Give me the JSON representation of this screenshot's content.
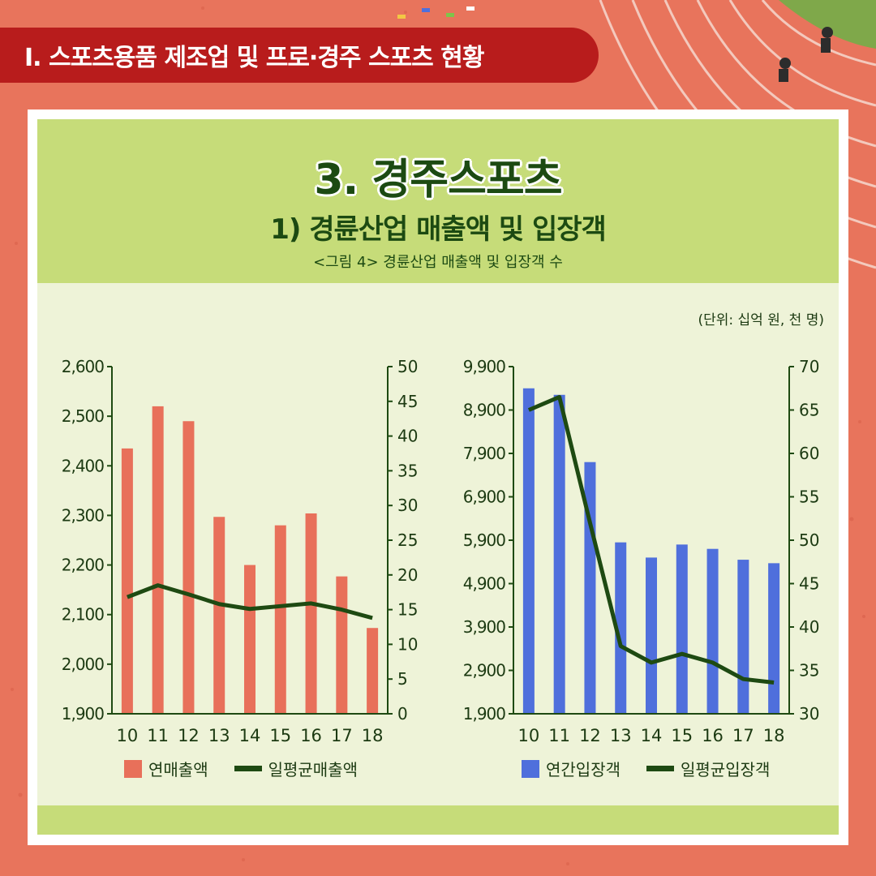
{
  "section_banner": "Ⅰ. 스포츠용품 제조업 및 프로·경주 스포츠 현황",
  "header": {
    "title": "3. 경주스포츠",
    "subtitle": "1) 경륜산업 매출액 및 입장객",
    "caption": "<그림 4> 경륜산업 매출액 및 입장객 수"
  },
  "unit_note": "(단위: 십억 원, 천 명)",
  "colors": {
    "bar_sales": "#e8705a",
    "bar_visitors": "#4f6fdc",
    "line": "#1e4a12",
    "accent_green": "#c6dc79"
  },
  "chart_data": [
    {
      "type": "bar",
      "categories": [
        "10",
        "11",
        "12",
        "13",
        "14",
        "15",
        "16",
        "17",
        "18"
      ],
      "y_left": {
        "ylim": [
          1900,
          2600
        ],
        "ticks": [
          "1,900",
          "2,000",
          "2,100",
          "2,200",
          "2,300",
          "2,400",
          "2,500",
          "2,600"
        ]
      },
      "y_right": {
        "ylim": [
          0,
          50
        ],
        "ticks": [
          "0",
          "5",
          "10",
          "15",
          "20",
          "25",
          "30",
          "35",
          "40",
          "45",
          "50"
        ]
      },
      "series": [
        {
          "name": "연매출액",
          "type": "bar",
          "axis": "left",
          "values": [
            2435,
            2520,
            2490,
            2297,
            2200,
            2280,
            2304,
            2177,
            2073
          ]
        },
        {
          "name": "일평균매출액",
          "type": "line",
          "axis": "right",
          "values": [
            16.8,
            18.5,
            17.2,
            15.8,
            15.1,
            15.5,
            15.9,
            15.0,
            13.8
          ]
        }
      ],
      "grid": false,
      "legend": "bottom"
    },
    {
      "type": "bar",
      "categories": [
        "10",
        "11",
        "12",
        "13",
        "14",
        "15",
        "16",
        "17",
        "18"
      ],
      "y_left": {
        "ylim": [
          1900,
          9900
        ],
        "ticks": [
          "1,900",
          "2,900",
          "3,900",
          "4,900",
          "5,900",
          "6,900",
          "7,900",
          "8,900",
          "9,900"
        ]
      },
      "y_right": {
        "ylim": [
          30,
          70
        ],
        "ticks": [
          "30",
          "35",
          "40",
          "45",
          "50",
          "55",
          "60",
          "65",
          "70"
        ]
      },
      "series": [
        {
          "name": "연간입장객",
          "type": "bar",
          "axis": "left",
          "values": [
            9400,
            9250,
            7700,
            5850,
            5500,
            5800,
            5700,
            5450,
            5370
          ]
        },
        {
          "name": "일평균입장객",
          "type": "line",
          "axis": "right",
          "values": [
            65,
            66.5,
            52,
            37.8,
            35.9,
            36.9,
            35.9,
            34.0,
            33.6
          ]
        }
      ],
      "grid": false,
      "legend": "bottom"
    }
  ]
}
